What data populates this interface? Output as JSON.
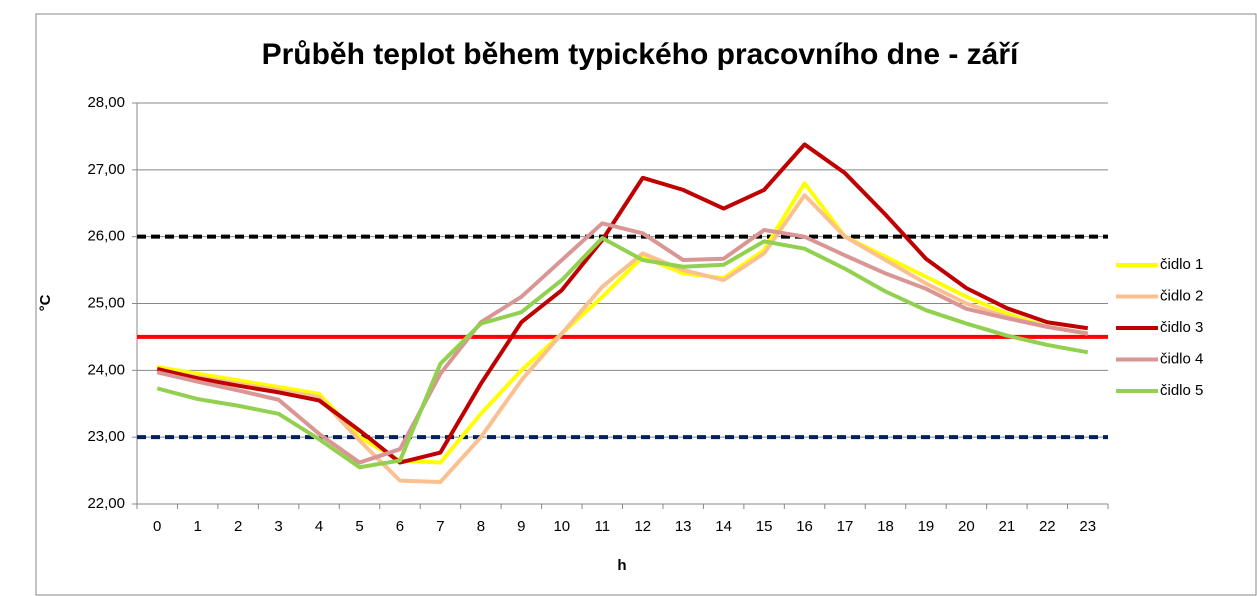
{
  "chart_data": {
    "type": "line",
    "title": "Průběh teplot během typického pracovního dne - září",
    "x_label": "h",
    "y_label": "°C",
    "categories": [
      "0",
      "1",
      "2",
      "3",
      "4",
      "5",
      "6",
      "7",
      "8",
      "9",
      "10",
      "11",
      "12",
      "13",
      "14",
      "15",
      "16",
      "17",
      "18",
      "19",
      "20",
      "21",
      "22",
      "23"
    ],
    "series": [
      {
        "name": "čidlo 1",
        "color": "#ffff00",
        "values": [
          24.05,
          23.95,
          23.85,
          23.75,
          23.65,
          23.0,
          22.65,
          22.62,
          23.35,
          24.0,
          24.55,
          25.1,
          25.7,
          25.45,
          25.38,
          25.8,
          26.8,
          26.0,
          25.7,
          25.4,
          25.1,
          24.85,
          24.65,
          24.55
        ]
      },
      {
        "name": "čidlo 2",
        "color": "#fac090",
        "values": [
          24.0,
          23.9,
          23.8,
          23.7,
          23.6,
          22.95,
          22.35,
          22.33,
          23.0,
          23.85,
          24.55,
          25.25,
          25.75,
          25.5,
          25.35,
          25.75,
          26.62,
          26.0,
          25.65,
          25.3,
          25.0,
          24.8,
          24.65,
          24.55
        ]
      },
      {
        "name": "čidlo 3",
        "color": "#c00000",
        "values": [
          24.02,
          23.88,
          23.77,
          23.67,
          23.55,
          23.1,
          22.62,
          22.77,
          23.8,
          24.72,
          25.2,
          25.95,
          26.88,
          26.7,
          26.42,
          26.7,
          27.38,
          26.95,
          26.33,
          25.67,
          25.23,
          24.93,
          24.72,
          24.63
        ]
      },
      {
        "name": "čidlo 4",
        "color": "#d99694",
        "values": [
          23.97,
          23.83,
          23.7,
          23.56,
          23.05,
          22.62,
          22.82,
          23.95,
          24.72,
          25.1,
          25.65,
          26.2,
          26.05,
          25.65,
          25.67,
          26.1,
          26.0,
          25.72,
          25.45,
          25.22,
          24.92,
          24.78,
          24.65,
          24.55
        ]
      },
      {
        "name": "čidlo 5",
        "color": "#92d050",
        "values": [
          23.73,
          23.57,
          23.47,
          23.35,
          22.97,
          22.55,
          22.65,
          24.1,
          24.7,
          24.87,
          25.35,
          25.98,
          25.65,
          25.55,
          25.58,
          25.93,
          25.82,
          25.52,
          25.18,
          24.9,
          24.7,
          24.52,
          24.38,
          24.27
        ]
      }
    ],
    "reference_lines": [
      {
        "value": 26,
        "color": "#000000",
        "dashed": true
      },
      {
        "value": 24.5,
        "color": "#ff0000",
        "dashed": false
      },
      {
        "value": 23,
        "color": "#002060",
        "dashed": true
      }
    ],
    "ylim": [
      22,
      28
    ],
    "yticks": [
      {
        "value": 22,
        "label": "22,00"
      },
      {
        "value": 23,
        "label": "23,00"
      },
      {
        "value": 24,
        "label": "24,00"
      },
      {
        "value": 25,
        "label": "25,00"
      },
      {
        "value": 26,
        "label": "26,00"
      },
      {
        "value": 27,
        "label": "27,00"
      },
      {
        "value": 28,
        "label": "28,00"
      }
    ],
    "grid": true,
    "legend": "right"
  }
}
